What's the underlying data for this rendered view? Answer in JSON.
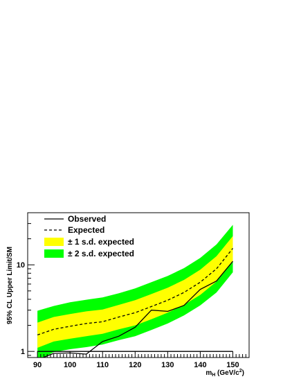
{
  "chart_data": {
    "type": "line",
    "xlabel": "m",
    "xlabel_sub": "H",
    "xlabel_unit_pre": " (GeV/c",
    "xlabel_unit_sup": "2",
    "xlabel_unit_post": ")",
    "ylabel": "95% CL Upper Limit/SM",
    "xlim": [
      87,
      155
    ],
    "ylim": [
      0.85,
      40
    ],
    "yscale": "log",
    "x_ticks": [
      90,
      100,
      110,
      120,
      130,
      140,
      150
    ],
    "y_ticks": [
      1,
      10
    ],
    "legend_position": "top-left",
    "legend": [
      {
        "label": "Observed",
        "style": "solid-line"
      },
      {
        "label": "Expected",
        "style": "dashed-line"
      },
      {
        "label": "± 1 s.d. expected",
        "style": "yellow-band"
      },
      {
        "label": "± 2 s.d. expected",
        "style": "green-band"
      }
    ],
    "colors": {
      "one_sigma": "#ffff00",
      "two_sigma": "#00ff00",
      "lines": "#000000"
    },
    "x": [
      90,
      95,
      100,
      105,
      110,
      115,
      120,
      125,
      130,
      135,
      140,
      145,
      150
    ],
    "observed": [
      0.8,
      0.95,
      0.96,
      0.93,
      1.3,
      1.5,
      1.9,
      3.0,
      2.9,
      3.4,
      5.2,
      6.5,
      11.0
    ],
    "expected": [
      1.55,
      1.8,
      1.95,
      2.1,
      2.2,
      2.5,
      2.8,
      3.3,
      3.9,
      4.8,
      6.3,
      9.0,
      15.5
    ],
    "one_sigma_low": [
      1.1,
      1.3,
      1.4,
      1.5,
      1.6,
      1.8,
      2.0,
      2.35,
      2.8,
      3.45,
      4.5,
      6.4,
      11.0
    ],
    "one_sigma_high": [
      2.15,
      2.5,
      2.7,
      2.9,
      3.05,
      3.45,
      3.9,
      4.6,
      5.45,
      6.7,
      8.8,
      12.6,
      21.5
    ],
    "two_sigma_low": [
      0.78,
      0.98,
      1.06,
      1.12,
      1.2,
      1.35,
      1.5,
      1.77,
      2.1,
      2.6,
      3.4,
      4.8,
      8.2
    ],
    "two_sigma_high": [
      2.95,
      3.35,
      3.7,
      3.95,
      4.2,
      4.7,
      5.35,
      6.3,
      7.45,
      9.15,
      12.0,
      17.2,
      29.0
    ],
    "reference_line": 1
  }
}
